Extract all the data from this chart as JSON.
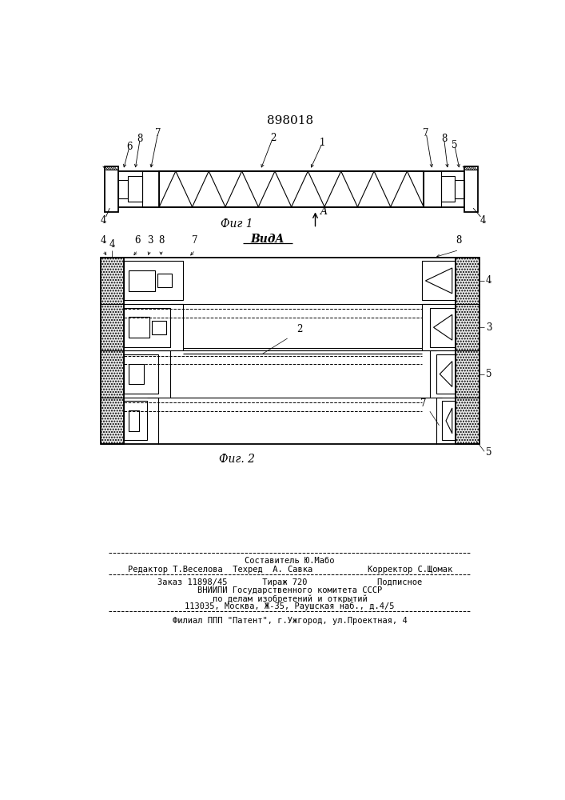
{
  "title_number": "898018",
  "fig1_caption": "Фиг 1",
  "fig2_caption": "Фиг. 2",
  "view_caption": "ВидA",
  "footer_line1": "Составитель Ю.Мабо",
  "footer_line2": "Редактор Т.Веселова  Техред  А. Савка           Корректор С.Щомак",
  "footer_line3": "Заказ 11898/45       Тираж 720              Подписное",
  "footer_line4": "ВНИИПИ Государственного комитета СССР",
  "footer_line5": "по делам изобретений и открытий",
  "footer_line6": "113035, Москва, Ж-35, Раушская наб., д.4/5",
  "footer_line7": "Филиал ППП \"Патент\", г.Ужгород, ул.Проектная, 4",
  "bg_color": "#ffffff",
  "line_color": "#000000"
}
